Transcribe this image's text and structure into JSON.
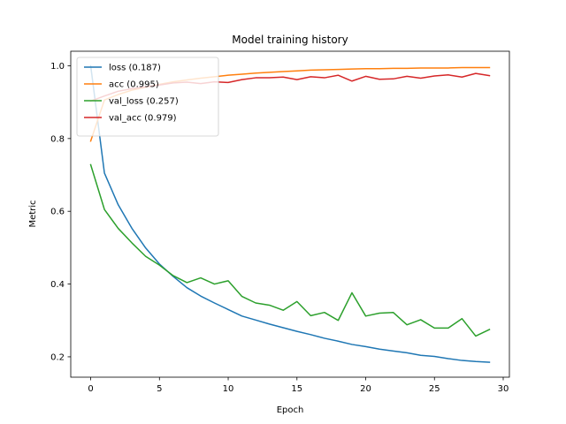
{
  "chart_data": {
    "type": "line",
    "title": "Model training history",
    "xlabel": "Epoch",
    "ylabel": "Metric",
    "xlim": [
      -1.45,
      30.45
    ],
    "ylim": [
      0.144,
      1.04
    ],
    "xticks": [
      0,
      5,
      10,
      15,
      20,
      25,
      30
    ],
    "yticks": [
      0.2,
      0.4,
      0.6,
      0.8,
      1.0
    ],
    "grid": false,
    "legend_position": "top-left",
    "x": [
      0,
      1,
      2,
      3,
      4,
      5,
      6,
      7,
      8,
      9,
      10,
      11,
      12,
      13,
      14,
      15,
      16,
      17,
      18,
      19,
      20,
      21,
      22,
      23,
      24,
      25,
      26,
      27,
      28,
      29
    ],
    "series": [
      {
        "name": "loss (0.187)",
        "color": "#1f77b4",
        "values": [
          1.0,
          0.705,
          0.618,
          0.553,
          0.499,
          0.455,
          0.421,
          0.39,
          0.367,
          0.348,
          0.33,
          0.312,
          0.301,
          0.29,
          0.28,
          0.27,
          0.261,
          0.251,
          0.243,
          0.234,
          0.228,
          0.221,
          0.216,
          0.211,
          0.204,
          0.201,
          0.195,
          0.19,
          0.187,
          0.185
        ]
      },
      {
        "name": "acc (0.995)",
        "color": "#ff7f0e",
        "values": [
          0.793,
          0.906,
          0.921,
          0.933,
          0.941,
          0.949,
          0.956,
          0.961,
          0.966,
          0.97,
          0.974,
          0.977,
          0.98,
          0.982,
          0.984,
          0.986,
          0.988,
          0.989,
          0.99,
          0.991,
          0.992,
          0.992,
          0.993,
          0.993,
          0.994,
          0.994,
          0.994,
          0.995,
          0.995,
          0.995
        ]
      },
      {
        "name": "val_loss (0.257)",
        "color": "#2ca02c",
        "values": [
          0.728,
          0.605,
          0.553,
          0.513,
          0.476,
          0.452,
          0.423,
          0.404,
          0.417,
          0.4,
          0.409,
          0.366,
          0.348,
          0.342,
          0.328,
          0.352,
          0.313,
          0.322,
          0.3,
          0.376,
          0.312,
          0.32,
          0.322,
          0.288,
          0.302,
          0.279,
          0.279,
          0.305,
          0.257,
          0.275
        ]
      },
      {
        "name": "val_acc (0.979)",
        "color": "#d62728",
        "values": [
          0.903,
          0.917,
          0.93,
          0.937,
          0.942,
          0.947,
          0.953,
          0.955,
          0.951,
          0.956,
          0.954,
          0.962,
          0.967,
          0.967,
          0.969,
          0.962,
          0.97,
          0.967,
          0.974,
          0.958,
          0.971,
          0.963,
          0.964,
          0.971,
          0.966,
          0.972,
          0.975,
          0.969,
          0.979,
          0.973
        ]
      }
    ]
  }
}
